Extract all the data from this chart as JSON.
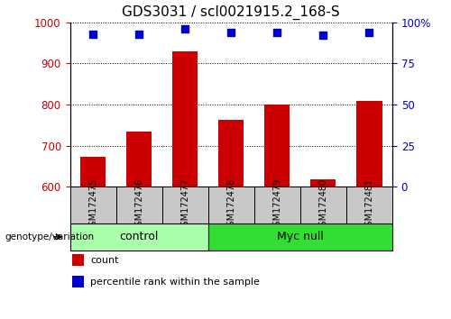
{
  "title": "GDS3031 / scl0021915.2_168-S",
  "samples": [
    "GSM172475",
    "GSM172476",
    "GSM172477",
    "GSM172478",
    "GSM172479",
    "GSM172480",
    "GSM172481"
  ],
  "counts": [
    672,
    735,
    930,
    762,
    800,
    618,
    808
  ],
  "percentile_ranks": [
    93,
    93,
    96,
    94,
    94,
    92,
    94
  ],
  "groups": [
    "control",
    "control",
    "control",
    "Myc null",
    "Myc null",
    "Myc null",
    "Myc null"
  ],
  "control_color": "#AAFFAA",
  "mycnull_color": "#33DD33",
  "ylim_left": [
    600,
    1000
  ],
  "ylim_right": [
    0,
    100
  ],
  "yticks_left": [
    600,
    700,
    800,
    900,
    1000
  ],
  "yticks_right": [
    0,
    25,
    50,
    75,
    100
  ],
  "bar_color": "#CC0000",
  "dot_color": "#0000CC",
  "dot_size": 40,
  "bar_bottom": 600,
  "title_fontsize": 11,
  "tick_label_color_left": "#CC0000",
  "tick_label_color_right": "#0000CC",
  "legend_count_label": "count",
  "legend_pct_label": "percentile rank within the sample",
  "genotype_label": "genotype/variation",
  "xlabel_area_color": "#C8C8C8"
}
